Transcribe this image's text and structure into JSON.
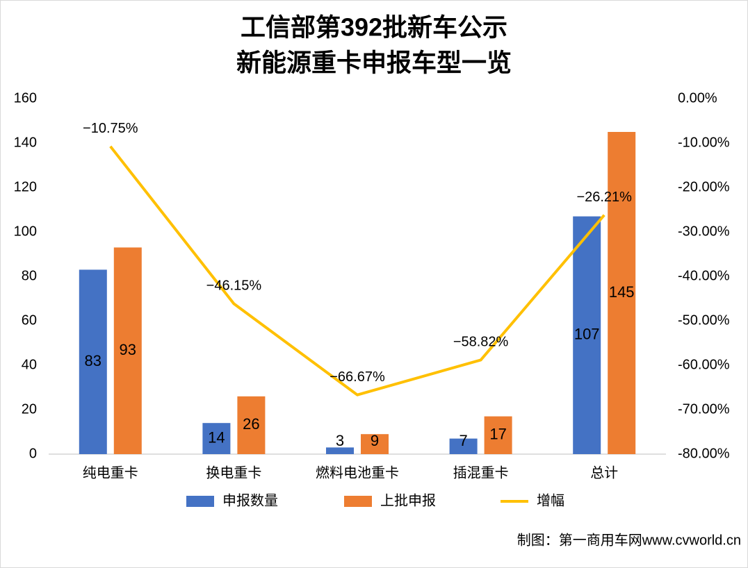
{
  "chart_data": {
    "type": "bar",
    "title": [
      "工信部第392批新车公示",
      "新能源重卡申报车型一览"
    ],
    "categories": [
      "纯电重卡",
      "换电重卡",
      "燃料电池重卡",
      "插混重卡",
      "总计"
    ],
    "series": [
      {
        "name": "申报数量",
        "color": "#4472c4",
        "values": [
          83,
          14,
          3,
          7,
          107
        ]
      },
      {
        "name": "上批申报",
        "color": "#ed7d31",
        "values": [
          93,
          26,
          9,
          17,
          145
        ]
      },
      {
        "name": "增幅",
        "color": "#ffc000",
        "type": "line",
        "axis": "y2",
        "values": [
          -10.75,
          -46.15,
          -66.67,
          -58.82,
          -26.21
        ],
        "value_labels": [
          "−10.75%",
          "−46.15%",
          "−66.67%",
          "−58.82%",
          "−26.21%"
        ]
      }
    ],
    "ylim": [
      0,
      160
    ],
    "yticks": [
      0,
      20,
      40,
      60,
      80,
      100,
      120,
      140,
      160
    ],
    "y2lim": [
      -80,
      0
    ],
    "y2ticks": [
      {
        "value": 0,
        "label": "0.00%"
      },
      {
        "value": -10,
        "label": "-10.00%"
      },
      {
        "value": -20,
        "label": "-20.00%"
      },
      {
        "value": -30,
        "label": "-30.00%"
      },
      {
        "value": -40,
        "label": "-40.00%"
      },
      {
        "value": -50,
        "label": "-50.00%"
      },
      {
        "value": -60,
        "label": "-60.00%"
      },
      {
        "value": -70,
        "label": "-70.00%"
      },
      {
        "value": -80,
        "label": "-80.00%"
      }
    ],
    "grid": false,
    "legend": "bottom",
    "source": "制图：第一商用车网www.cvworld.cn"
  }
}
